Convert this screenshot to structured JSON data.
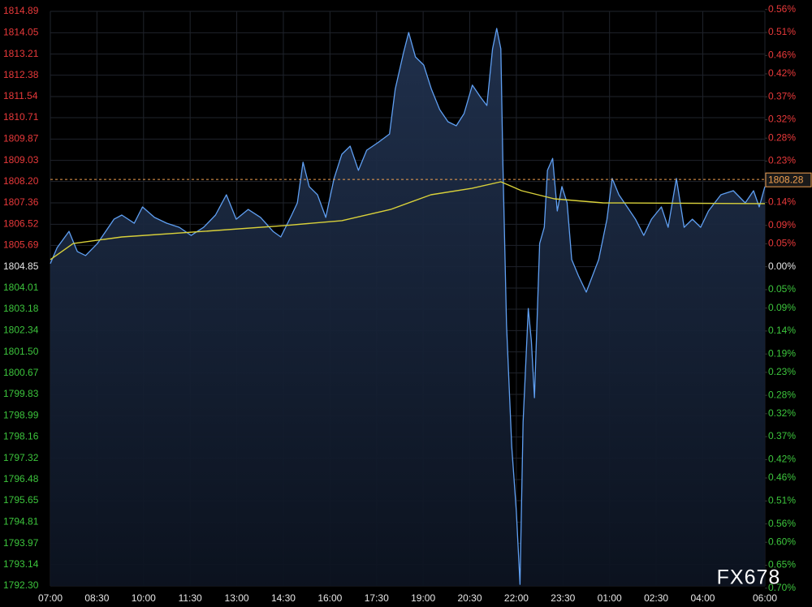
{
  "chart_data": {
    "type": "line",
    "watermark": "FX678",
    "base_price": 1804.85,
    "up_color": "#e8393a",
    "down_color": "#3cc43c",
    "flat_color": "#e6e6e6",
    "grid": true,
    "area": true,
    "xlim": [
      0,
      1380
    ],
    "xticks": [
      {
        "value": 0,
        "label": "07:00"
      },
      {
        "value": 90,
        "label": "08:30"
      },
      {
        "value": 180,
        "label": "10:00"
      },
      {
        "value": 270,
        "label": "11:30"
      },
      {
        "value": 360,
        "label": "13:00"
      },
      {
        "value": 450,
        "label": "14:30"
      },
      {
        "value": 540,
        "label": "16:00"
      },
      {
        "value": 630,
        "label": "17:30"
      },
      {
        "value": 720,
        "label": "19:00"
      },
      {
        "value": 810,
        "label": "20:30"
      },
      {
        "value": 900,
        "label": "22:00"
      },
      {
        "value": 990,
        "label": "23:30"
      },
      {
        "value": 1080,
        "label": "01:00"
      },
      {
        "value": 1170,
        "label": "02:30"
      },
      {
        "value": 1260,
        "label": "04:00"
      },
      {
        "value": 1380,
        "label": "06:00"
      }
    ],
    "ylim": [
      1792.3,
      1814.89
    ],
    "yticks": [
      1814.89,
      1814.05,
      1813.21,
      1812.38,
      1811.54,
      1810.71,
      1809.87,
      1809.03,
      {
        "value": 1808.2,
        "label": "1808.20"
      },
      1807.36,
      1806.52,
      1805.69,
      1804.85,
      1804.01,
      1803.18,
      1802.34,
      {
        "value": 1801.5,
        "label": "1801.50"
      },
      1800.67,
      1799.83,
      1798.99,
      1798.16,
      1797.32,
      1796.48,
      1795.65,
      1794.81,
      1793.97,
      1793.14,
      {
        "value": 1792.3,
        "label": "1792.30"
      }
    ],
    "y2lim": [
      -0.695,
      0.556
    ],
    "y2ticks": [
      {
        "value": 0.56,
        "label": "0.56%"
      },
      {
        "value": 0.51,
        "label": "0.51%"
      },
      {
        "value": 0.46,
        "label": "0.46%"
      },
      {
        "value": 0.42,
        "label": "0.42%"
      },
      {
        "value": 0.37,
        "label": "0.37%"
      },
      {
        "value": 0.32,
        "label": "0.32%"
      },
      {
        "value": 0.28,
        "label": "0.28%"
      },
      {
        "value": 0.23,
        "label": "0.23%"
      },
      {
        "value": 0.19,
        "label": "0.19%"
      },
      {
        "value": 0.14,
        "label": "0.14%"
      },
      {
        "value": 0.09,
        "label": "0.09%"
      },
      {
        "value": 0.05,
        "label": "0.05%"
      },
      {
        "value": 0,
        "label": "0.00%"
      },
      {
        "value": -0.05,
        "label": "0.05%"
      },
      {
        "value": -0.09,
        "label": "0.09%"
      },
      {
        "value": -0.14,
        "label": "0.14%"
      },
      {
        "value": -0.19,
        "label": "0.19%"
      },
      {
        "value": -0.23,
        "label": "0.23%"
      },
      {
        "value": -0.28,
        "label": "0.28%"
      },
      {
        "value": -0.32,
        "label": "0.32%"
      },
      {
        "value": -0.37,
        "label": "0.37%"
      },
      {
        "value": -0.42,
        "label": "0.42%"
      },
      {
        "value": -0.46,
        "label": "0.46%"
      },
      {
        "value": -0.51,
        "label": "0.51%"
      },
      {
        "value": -0.56,
        "label": "0.56%"
      },
      {
        "value": -0.6,
        "label": "0.60%"
      },
      {
        "value": -0.65,
        "label": "0.65%"
      },
      {
        "value": -0.7,
        "label": "0.70%"
      }
    ],
    "last_value": {
      "value": 1808.28,
      "color": "#f0a050"
    },
    "series": [
      {
        "color": "#5f9ff2",
        "x": [
          0,
          13,
          36,
          52,
          68,
          91,
          123,
          138,
          162,
          178,
          201,
          225,
          249,
          272,
          296,
          319,
          340,
          359,
          382,
          406,
          430,
          445,
          466,
          477,
          488,
          500,
          516,
          532,
          548,
          563,
          579,
          595,
          611,
          634,
          655,
          666,
          682,
          692,
          705,
          721,
          736,
          752,
          768,
          784,
          799,
          815,
          831,
          843,
          854,
          862,
          870,
          874,
          881,
          891,
          900,
          907,
          913,
          923,
          929,
          935,
          945,
          954,
          960,
          970,
          979,
          988,
          998,
          1007,
          1020,
          1035,
          1059,
          1075,
          1085,
          1098,
          1114,
          1130,
          1146,
          1161,
          1180,
          1193,
          1209,
          1224,
          1240,
          1256,
          1271,
          1295,
          1319,
          1342,
          1358,
          1369,
          1380
        ],
        "values": [
          1804.97,
          1805.6,
          1806.24,
          1805.45,
          1805.29,
          1805.76,
          1806.72,
          1806.88,
          1806.56,
          1807.2,
          1806.79,
          1806.56,
          1806.4,
          1806.08,
          1806.4,
          1806.88,
          1807.68,
          1806.72,
          1807.1,
          1806.79,
          1806.24,
          1806.02,
          1806.88,
          1807.36,
          1808.96,
          1808.0,
          1807.68,
          1806.79,
          1808.32,
          1809.27,
          1809.59,
          1808.64,
          1809.43,
          1809.75,
          1810.07,
          1811.83,
          1813.26,
          1814.06,
          1813.1,
          1812.78,
          1811.83,
          1811.03,
          1810.55,
          1810.39,
          1810.87,
          1811.99,
          1811.51,
          1811.19,
          1813.42,
          1814.22,
          1813.42,
          1808.96,
          1802.57,
          1797.79,
          1795.23,
          1792.36,
          1798.74,
          1803.21,
          1801.93,
          1799.7,
          1805.76,
          1806.4,
          1808.64,
          1809.11,
          1807.04,
          1808.0,
          1807.36,
          1805.13,
          1804.49,
          1803.85,
          1805.13,
          1806.72,
          1808.32,
          1807.68,
          1807.2,
          1806.72,
          1806.08,
          1806.72,
          1807.2,
          1806.4,
          1808.32,
          1806.4,
          1806.72,
          1806.4,
          1807.04,
          1807.68,
          1807.84,
          1807.36,
          1807.84,
          1807.2,
          1808.0
        ]
      },
      {
        "color": "#d9d13a",
        "x": [
          0,
          44,
          138,
          296,
          453,
          563,
          657,
          735,
          814,
          870,
          910,
          973,
          1067,
          1380
        ],
        "values": [
          1805.13,
          1805.76,
          1806.02,
          1806.24,
          1806.47,
          1806.66,
          1807.1,
          1807.68,
          1807.93,
          1808.19,
          1807.84,
          1807.52,
          1807.36,
          1807.33
        ]
      }
    ]
  }
}
